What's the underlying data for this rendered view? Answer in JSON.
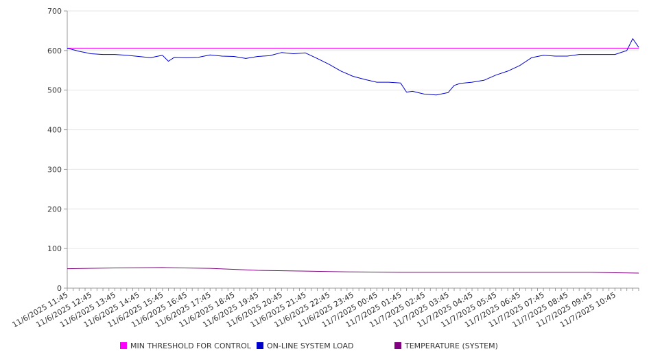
{
  "chart_data": {
    "type": "line",
    "title": "",
    "xlabel": "",
    "ylabel": "",
    "ylim": [
      0,
      700
    ],
    "y_ticks": [
      "0",
      "100",
      "200",
      "300",
      "400",
      "500",
      "600",
      "700"
    ],
    "grid": true,
    "legend_position": "bottom",
    "x_start": "11/6/2025 11:45",
    "x_end": "11/7/2025 11:45",
    "categories": [
      "11/6/2025 11:45",
      "11/6/2025 12:45",
      "11/6/2025 13:45",
      "11/6/2025 14:45",
      "11/6/2025 15:45",
      "11/6/2025 16:45",
      "11/6/2025 17:45",
      "11/6/2025 18:45",
      "11/6/2025 19:45",
      "11/6/2025 20:45",
      "11/6/2025 21:45",
      "11/6/2025 22:45",
      "11/6/2025 23:45",
      "11/7/2025 00:45",
      "11/7/2025 01:45",
      "11/7/2025 02:45",
      "11/7/2025 03:45",
      "11/7/2025 04:45",
      "11/7/2025 05:45",
      "11/7/2025 06:45",
      "11/7/2025 07:45",
      "11/7/2025 08:45",
      "11/7/2025 09:45",
      "11/7/2025 10:45"
    ],
    "series": [
      {
        "name": "MIN THRESHOLD FOR CONTROL",
        "color": "#ff00ff",
        "points": [
          [
            "11/6/2025 11:45",
            606
          ],
          [
            "11/7/2025 11:45",
            606
          ]
        ]
      },
      {
        "name": "ON-LINE SYSTEM LOAD",
        "color": "#0000cc",
        "points": [
          [
            "11/6/2025 11:45",
            606
          ],
          [
            "11/6/2025 12:15",
            598
          ],
          [
            "11/6/2025 12:45",
            592
          ],
          [
            "11/6/2025 13:15",
            590
          ],
          [
            "11/6/2025 13:45",
            590
          ],
          [
            "11/6/2025 14:15",
            588
          ],
          [
            "11/6/2025 14:45",
            585
          ],
          [
            "11/6/2025 15:15",
            582
          ],
          [
            "11/6/2025 15:45",
            588
          ],
          [
            "11/6/2025 16:00",
            573
          ],
          [
            "11/6/2025 16:15",
            583
          ],
          [
            "11/6/2025 16:45",
            582
          ],
          [
            "11/6/2025 17:15",
            583
          ],
          [
            "11/6/2025 17:45",
            589
          ],
          [
            "11/6/2025 18:15",
            586
          ],
          [
            "11/6/2025 18:45",
            585
          ],
          [
            "11/6/2025 19:15",
            580
          ],
          [
            "11/6/2025 19:45",
            585
          ],
          [
            "11/6/2025 20:15",
            587
          ],
          [
            "11/6/2025 20:45",
            595
          ],
          [
            "11/6/2025 21:15",
            592
          ],
          [
            "11/6/2025 21:45",
            594
          ],
          [
            "11/6/2025 22:15",
            580
          ],
          [
            "11/6/2025 22:45",
            565
          ],
          [
            "11/6/2025 23:15",
            548
          ],
          [
            "11/6/2025 23:45",
            535
          ],
          [
            "11/7/2025 00:15",
            527
          ],
          [
            "11/7/2025 00:45",
            520
          ],
          [
            "11/7/2025 01:15",
            520
          ],
          [
            "11/7/2025 01:45",
            518
          ],
          [
            "11/7/2025 02:00",
            495
          ],
          [
            "11/7/2025 02:15",
            497
          ],
          [
            "11/7/2025 02:45",
            490
          ],
          [
            "11/7/2025 03:15",
            488
          ],
          [
            "11/7/2025 03:45",
            494
          ],
          [
            "11/7/2025 04:00",
            512
          ],
          [
            "11/7/2025 04:15",
            517
          ],
          [
            "11/7/2025 04:45",
            520
          ],
          [
            "11/7/2025 05:15",
            525
          ],
          [
            "11/7/2025 05:45",
            538
          ],
          [
            "11/7/2025 06:15",
            548
          ],
          [
            "11/7/2025 06:45",
            562
          ],
          [
            "11/7/2025 07:15",
            582
          ],
          [
            "11/7/2025 07:45",
            588
          ],
          [
            "11/7/2025 08:15",
            586
          ],
          [
            "11/7/2025 08:45",
            586
          ],
          [
            "11/7/2025 09:15",
            590
          ],
          [
            "11/7/2025 09:45",
            590
          ],
          [
            "11/7/2025 10:15",
            590
          ],
          [
            "11/7/2025 10:45",
            590
          ],
          [
            "11/7/2025 11:15",
            600
          ],
          [
            "11/7/2025 11:30",
            630
          ],
          [
            "11/7/2025 11:45",
            608
          ]
        ]
      },
      {
        "name": "TEMPERATURE (SYSTEM)",
        "color": "#800080",
        "points": [
          [
            "11/6/2025 11:45",
            49
          ],
          [
            "11/6/2025 13:45",
            51
          ],
          [
            "11/6/2025 15:45",
            52
          ],
          [
            "11/6/2025 17:45",
            50
          ],
          [
            "11/6/2025 19:45",
            45
          ],
          [
            "11/6/2025 21:45",
            43
          ],
          [
            "11/6/2025 23:45",
            41
          ],
          [
            "11/7/2025 01:45",
            40
          ],
          [
            "11/7/2025 03:45",
            40
          ],
          [
            "11/7/2025 05:45",
            40
          ],
          [
            "11/7/2025 07:45",
            40
          ],
          [
            "11/7/2025 09:45",
            40
          ],
          [
            "11/7/2025 11:45",
            38
          ]
        ]
      }
    ]
  }
}
